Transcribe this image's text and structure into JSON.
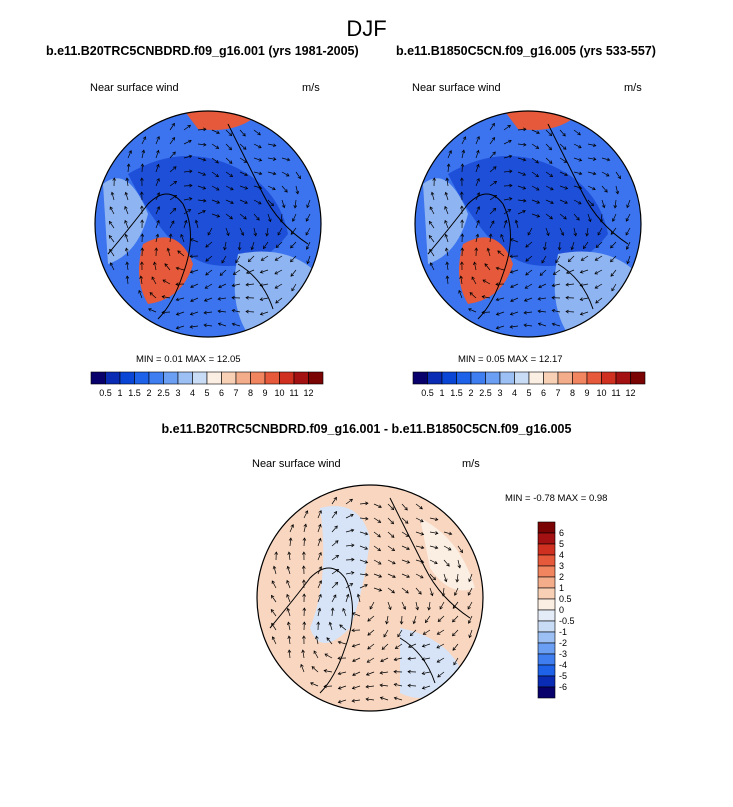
{
  "figure_title": "DJF",
  "panels": [
    {
      "title": "b.e11.B20TRC5CNBDRD.f09_g16.001 (yrs 1981-2005)",
      "field_label": "Near surface wind",
      "units": "m/s",
      "min_label": "MIN =",
      "min": "0.01",
      "max_label": "MAX =",
      "max": "12.05"
    },
    {
      "title": "b.e11.B1850C5CN.f09_g16.005 (yrs 533-557)",
      "field_label": "Near surface wind",
      "units": "m/s",
      "min_label": "MIN =",
      "min": "0.05",
      "max_label": "MAX =",
      "max": "12.17"
    },
    {
      "title": "b.e11.B20TRC5CNBDRD.f09_g16.001 - b.e11.B1850C5CN.f09_g16.005",
      "field_label": "Near surface wind",
      "units": "m/s",
      "min_label": "MIN =",
      "min": "-0.78",
      "max_label": "MAX =",
      "max": "0.98"
    }
  ],
  "colorbar_speed": {
    "labels": [
      "0.5",
      "1",
      "1.5",
      "2",
      "2.5",
      "3",
      "4",
      "5",
      "6",
      "7",
      "8",
      "9",
      "10",
      "11",
      "12"
    ],
    "colors": [
      "#08006b",
      "#0a2bb3",
      "#0a46d6",
      "#1d62e8",
      "#3e7ef0",
      "#6a9ff3",
      "#9cbff4",
      "#c9dcf6",
      "#fbeee2",
      "#f8d0b6",
      "#f4ad8a",
      "#f08560",
      "#e6593a",
      "#cf3020",
      "#a41112",
      "#7a0303"
    ]
  },
  "colorbar_diff": {
    "labels": [
      "6",
      "5",
      "4",
      "3",
      "2",
      "1",
      "0.5",
      "0",
      "-0.5",
      "-1",
      "-2",
      "-3",
      "-4",
      "-5",
      "-6"
    ],
    "colors": [
      "#7a0303",
      "#a41112",
      "#cf3020",
      "#e6593a",
      "#f08560",
      "#f4ad8a",
      "#f8d0b6",
      "#fbeee2",
      "#e4ecf8",
      "#c9dcf6",
      "#9cbff4",
      "#6a9ff3",
      "#3e7ef0",
      "#1d62e8",
      "#0a2bb3",
      "#08006b"
    ]
  },
  "map_colors": {
    "speed_ocean_dark": "#1d4fd8",
    "speed_ocean_mid": "#3b74ee",
    "speed_land_light": "#8fb4f2",
    "speed_high": "#e6593a",
    "diff_pos": "#f8d6c0",
    "diff_neg": "#d7e4f7",
    "diff_zero": "#fbeee2"
  }
}
